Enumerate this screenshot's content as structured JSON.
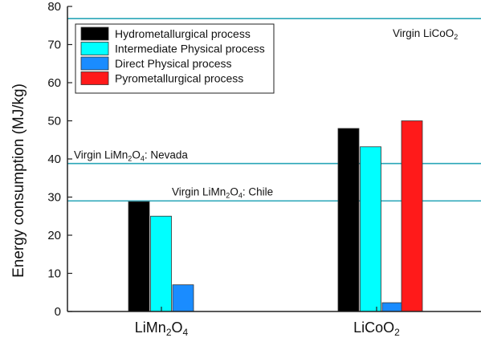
{
  "chart_data": {
    "type": "bar",
    "ylabel": "Energy consumption (MJ/kg)",
    "ylim": [
      0,
      80
    ],
    "yticks": [
      0,
      10,
      20,
      30,
      40,
      50,
      60,
      70,
      80
    ],
    "categories": [
      {
        "base": "LiMn",
        "sub1": "2",
        "mid": "O",
        "sub2": "4"
      },
      {
        "base": "LiCoO",
        "sub1": "2",
        "mid": "",
        "sub2": ""
      }
    ],
    "series": [
      {
        "name": "Hydrometallurgical process",
        "color": "#000000",
        "values": [
          28.8,
          48
        ]
      },
      {
        "name": "Intermediate Physical process",
        "color": "#00ffff",
        "values": [
          25,
          43.2
        ]
      },
      {
        "name": "Direct Physical process",
        "color": "#1a8cff",
        "values": [
          7,
          2.3
        ]
      },
      {
        "name": "Pyrometallurgical process",
        "color": "#ff1a1a",
        "values": [
          null,
          50
        ]
      }
    ],
    "reference_lines": [
      {
        "value": 76.8,
        "text": "Virgin LiCoO",
        "sub": "2",
        "tail": "",
        "color": "#2aa6b8"
      },
      {
        "value": 38.8,
        "text": "Virgin LiMn",
        "sub": "2",
        "mid": "O",
        "sub2": "4",
        "tail": ": Nevada",
        "color": "#2aa6b8"
      },
      {
        "value": 29,
        "text": "Virgin LiMn",
        "sub": "2",
        "mid": "O",
        "sub2": "4",
        "tail": ": Chile",
        "color": "#2aa6b8"
      }
    ],
    "legend_position": "top-left"
  }
}
